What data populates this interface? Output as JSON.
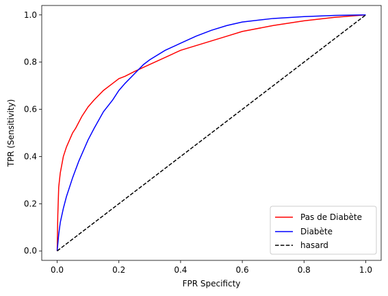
{
  "chart_data": {
    "type": "line",
    "xlabel": "FPR Specificty",
    "ylabel": "TPR (Sensitivity)",
    "xlim": [
      -0.05,
      1.05
    ],
    "ylim": [
      -0.04,
      1.04
    ],
    "xticks": [
      0.0,
      0.2,
      0.4,
      0.6,
      0.8,
      1.0
    ],
    "xtick_labels": [
      "0.0",
      "0.2",
      "0.4",
      "0.6",
      "0.8",
      "1.0"
    ],
    "yticks": [
      0.0,
      0.2,
      0.4,
      0.6,
      0.8,
      1.0
    ],
    "ytick_labels": [
      "0.0",
      "0.2",
      "0.4",
      "0.6",
      "0.8",
      "1.0"
    ],
    "grid": false,
    "legend_position": "lower-right",
    "series": [
      {
        "name": "Pas de Diabète",
        "color": "#ff0000",
        "style": "solid",
        "x": [
          0.0,
          0.002,
          0.005,
          0.01,
          0.02,
          0.03,
          0.04,
          0.05,
          0.06,
          0.08,
          0.1,
          0.12,
          0.15,
          0.18,
          0.2,
          0.22,
          0.25,
          0.3,
          0.35,
          0.4,
          0.45,
          0.5,
          0.55,
          0.6,
          0.7,
          0.8,
          0.9,
          1.0
        ],
        "y": [
          0.0,
          0.15,
          0.27,
          0.33,
          0.4,
          0.44,
          0.47,
          0.5,
          0.52,
          0.57,
          0.61,
          0.64,
          0.68,
          0.71,
          0.73,
          0.74,
          0.76,
          0.79,
          0.82,
          0.85,
          0.87,
          0.89,
          0.91,
          0.93,
          0.955,
          0.975,
          0.99,
          1.0
        ]
      },
      {
        "name": "Diabète",
        "color": "#0000ff",
        "style": "solid",
        "x": [
          0.0,
          0.005,
          0.01,
          0.02,
          0.03,
          0.04,
          0.05,
          0.07,
          0.1,
          0.12,
          0.15,
          0.18,
          0.2,
          0.22,
          0.25,
          0.28,
          0.3,
          0.35,
          0.4,
          0.45,
          0.5,
          0.55,
          0.6,
          0.7,
          0.8,
          0.9,
          1.0
        ],
        "y": [
          0.0,
          0.07,
          0.12,
          0.18,
          0.23,
          0.27,
          0.31,
          0.38,
          0.47,
          0.52,
          0.59,
          0.64,
          0.68,
          0.71,
          0.75,
          0.79,
          0.81,
          0.85,
          0.88,
          0.91,
          0.935,
          0.955,
          0.97,
          0.985,
          0.993,
          0.998,
          1.0
        ]
      },
      {
        "name": "hasard",
        "color": "#000000",
        "style": "dashed",
        "x": [
          0.0,
          1.0
        ],
        "y": [
          0.0,
          1.0
        ]
      }
    ]
  }
}
